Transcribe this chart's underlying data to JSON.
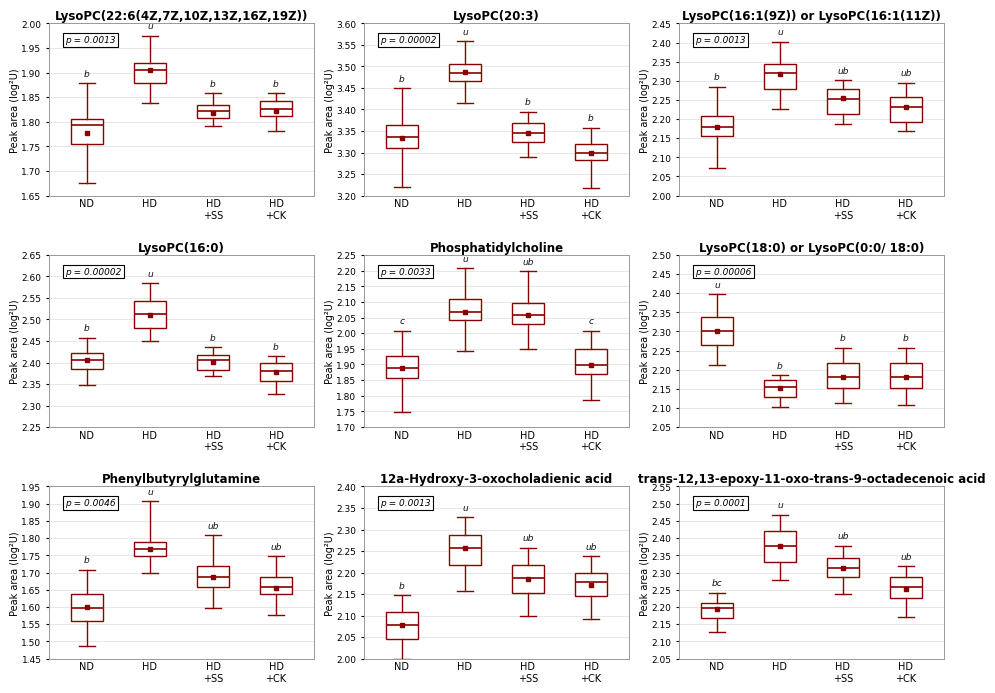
{
  "plots": [
    {
      "title": "LysoPC(22:6(4Z,7Z,10Z,13Z,16Z,19Z))",
      "pvalue": "p = 0.0013",
      "ylabel": "Peak area (log²U)",
      "ylim": [
        1.65,
        2.0
      ],
      "ytick_step": 0.05,
      "groups": [
        "ND",
        "HD",
        "HD\n+SS",
        "HD\n+CK"
      ],
      "sig_labels": [
        "b",
        "u",
        "b",
        "b"
      ],
      "boxes": [
        {
          "q1": 1.755,
          "median": 1.793,
          "q3": 1.805,
          "mean": 1.778,
          "whislo": 1.675,
          "whishi": 1.878
        },
        {
          "q1": 1.878,
          "median": 1.905,
          "q3": 1.92,
          "mean": 1.905,
          "whislo": 1.838,
          "whishi": 1.975
        },
        {
          "q1": 1.808,
          "median": 1.821,
          "q3": 1.835,
          "mean": 1.818,
          "whislo": 1.792,
          "whishi": 1.858
        },
        {
          "q1": 1.812,
          "median": 1.826,
          "q3": 1.843,
          "mean": 1.822,
          "whislo": 1.782,
          "whishi": 1.858
        }
      ]
    },
    {
      "title": "LysoPC(20:3)",
      "pvalue": "p = 0.00002",
      "ylabel": "Peak area (log²U)",
      "ylim": [
        3.2,
        3.6
      ],
      "ytick_step": 0.05,
      "groups": [
        "ND",
        "HD",
        "HD\n+SS",
        "HD\n+CK"
      ],
      "sig_labels": [
        "b",
        "u",
        "b",
        "b"
      ],
      "boxes": [
        {
          "q1": 3.31,
          "median": 3.335,
          "q3": 3.365,
          "mean": 3.334,
          "whislo": 3.22,
          "whishi": 3.45
        },
        {
          "q1": 3.465,
          "median": 3.485,
          "q3": 3.505,
          "mean": 3.487,
          "whislo": 3.415,
          "whishi": 3.558
        },
        {
          "q1": 3.325,
          "median": 3.345,
          "q3": 3.368,
          "mean": 3.345,
          "whislo": 3.29,
          "whishi": 3.395
        },
        {
          "q1": 3.282,
          "median": 3.298,
          "q3": 3.32,
          "mean": 3.3,
          "whislo": 3.218,
          "whishi": 3.358
        }
      ]
    },
    {
      "title": "LysoPC(16:1(9Z)) or LysoPC(16:1(11Z))",
      "pvalue": "p = 0.0013",
      "ylabel": "Peak area (log²U)",
      "ylim": [
        2.0,
        2.45
      ],
      "ytick_step": 0.05,
      "groups": [
        "ND",
        "HD",
        "HD\n+SS",
        "HD\n+CK"
      ],
      "sig_labels": [
        "b",
        "u",
        "ub",
        "ub"
      ],
      "boxes": [
        {
          "q1": 2.155,
          "median": 2.178,
          "q3": 2.208,
          "mean": 2.178,
          "whislo": 2.072,
          "whishi": 2.285
        },
        {
          "q1": 2.278,
          "median": 2.32,
          "q3": 2.345,
          "mean": 2.318,
          "whislo": 2.225,
          "whishi": 2.402
        },
        {
          "q1": 2.212,
          "median": 2.253,
          "q3": 2.278,
          "mean": 2.255,
          "whislo": 2.188,
          "whishi": 2.302
        },
        {
          "q1": 2.192,
          "median": 2.232,
          "q3": 2.258,
          "mean": 2.232,
          "whislo": 2.168,
          "whishi": 2.295
        }
      ]
    },
    {
      "title": "LysoPC(16:0)",
      "pvalue": "p = 0.00002",
      "ylabel": "Peak area (log²U)",
      "ylim": [
        2.25,
        2.65
      ],
      "ytick_step": 0.05,
      "groups": [
        "ND",
        "HD",
        "HD\n+SS",
        "HD\n+CK"
      ],
      "sig_labels": [
        "b",
        "u",
        "b",
        "b"
      ],
      "boxes": [
        {
          "q1": 2.385,
          "median": 2.405,
          "q3": 2.422,
          "mean": 2.405,
          "whislo": 2.348,
          "whishi": 2.458
        },
        {
          "q1": 2.48,
          "median": 2.512,
          "q3": 2.542,
          "mean": 2.51,
          "whislo": 2.45,
          "whishi": 2.585
        },
        {
          "q1": 2.382,
          "median": 2.405,
          "q3": 2.418,
          "mean": 2.402,
          "whislo": 2.368,
          "whishi": 2.435
        },
        {
          "q1": 2.358,
          "median": 2.38,
          "q3": 2.4,
          "mean": 2.378,
          "whislo": 2.328,
          "whishi": 2.415
        }
      ]
    },
    {
      "title": "Phosphatidylcholine",
      "pvalue": "p = 0.0033",
      "ylabel": "Peak area (log²U)",
      "ylim": [
        1.7,
        2.25
      ],
      "ytick_step": 0.05,
      "groups": [
        "ND",
        "HD",
        "HD\n+SS",
        "HD\n+CK"
      ],
      "sig_labels": [
        "c",
        "u",
        "ub",
        "c"
      ],
      "boxes": [
        {
          "q1": 1.858,
          "median": 1.888,
          "q3": 1.928,
          "mean": 1.888,
          "whislo": 1.748,
          "whishi": 2.008
        },
        {
          "q1": 2.042,
          "median": 2.068,
          "q3": 2.108,
          "mean": 2.068,
          "whislo": 1.942,
          "whishi": 2.208
        },
        {
          "q1": 2.028,
          "median": 2.058,
          "q3": 2.098,
          "mean": 2.058,
          "whislo": 1.948,
          "whishi": 2.198
        },
        {
          "q1": 1.868,
          "median": 1.898,
          "q3": 1.948,
          "mean": 1.898,
          "whislo": 1.788,
          "whishi": 2.008
        }
      ]
    },
    {
      "title": "LysoPC(18:0) or LysoPC(0:0/ 18:0)",
      "pvalue": "p = 0.00006",
      "ylabel": "Peak area (log²U)",
      "ylim": [
        2.05,
        2.5
      ],
      "ytick_step": 0.05,
      "groups": [
        "ND",
        "HD",
        "HD\n+SS",
        "HD\n+CK"
      ],
      "sig_labels": [
        "u",
        "b",
        "b",
        "b"
      ],
      "boxes": [
        {
          "q1": 2.265,
          "median": 2.302,
          "q3": 2.338,
          "mean": 2.3,
          "whislo": 2.212,
          "whishi": 2.398
        },
        {
          "q1": 2.128,
          "median": 2.155,
          "q3": 2.172,
          "mean": 2.152,
          "whislo": 2.102,
          "whishi": 2.185
        },
        {
          "q1": 2.152,
          "median": 2.182,
          "q3": 2.218,
          "mean": 2.182,
          "whislo": 2.112,
          "whishi": 2.258
        },
        {
          "q1": 2.152,
          "median": 2.182,
          "q3": 2.218,
          "mean": 2.182,
          "whislo": 2.108,
          "whishi": 2.258
        }
      ]
    },
    {
      "title": "Phenylbutyrylglutamine",
      "pvalue": "p = 0.0046",
      "ylabel": "Peak area (log²U)",
      "ylim": [
        1.45,
        1.95
      ],
      "ytick_step": 0.05,
      "groups": [
        "ND",
        "HD",
        "HD\n+SS",
        "HD\n+CK"
      ],
      "sig_labels": [
        "b",
        "u",
        "ub",
        "ub"
      ],
      "boxes": [
        {
          "q1": 1.558,
          "median": 1.598,
          "q3": 1.638,
          "mean": 1.6,
          "whislo": 1.488,
          "whishi": 1.708
        },
        {
          "q1": 1.748,
          "median": 1.768,
          "q3": 1.788,
          "mean": 1.768,
          "whislo": 1.698,
          "whishi": 1.908
        },
        {
          "q1": 1.658,
          "median": 1.688,
          "q3": 1.718,
          "mean": 1.688,
          "whislo": 1.598,
          "whishi": 1.808
        },
        {
          "q1": 1.638,
          "median": 1.658,
          "q3": 1.688,
          "mean": 1.655,
          "whislo": 1.578,
          "whishi": 1.748
        }
      ]
    },
    {
      "title": "12a-Hydroxy-3-oxocholadienic acid",
      "pvalue": "p = 0.0013",
      "ylabel": "Peak area (log²U)",
      "ylim": [
        2.0,
        2.4
      ],
      "ytick_step": 0.05,
      "groups": [
        "ND",
        "HD",
        "HD\n+SS",
        "HD\n+CK"
      ],
      "sig_labels": [
        "b",
        "u",
        "ub",
        "ub"
      ],
      "boxes": [
        {
          "q1": 2.045,
          "median": 2.078,
          "q3": 2.108,
          "mean": 2.078,
          "whislo": 1.998,
          "whishi": 2.148
        },
        {
          "q1": 2.218,
          "median": 2.258,
          "q3": 2.288,
          "mean": 2.258,
          "whislo": 2.158,
          "whishi": 2.328
        },
        {
          "q1": 2.152,
          "median": 2.188,
          "q3": 2.218,
          "mean": 2.185,
          "whislo": 2.098,
          "whishi": 2.258
        },
        {
          "q1": 2.145,
          "median": 2.178,
          "q3": 2.198,
          "mean": 2.172,
          "whislo": 2.092,
          "whishi": 2.238
        }
      ]
    },
    {
      "title": "trans-12,13-epoxy-11-oxo-trans-9-octadecenoic acid",
      "pvalue": "p = 0.0001",
      "ylabel": "Peak area (log²U)",
      "ylim": [
        2.05,
        2.55
      ],
      "ytick_step": 0.05,
      "groups": [
        "ND",
        "HD",
        "HD\n+SS",
        "HD\n+CK"
      ],
      "sig_labels": [
        "bc",
        "u",
        "ub",
        "ub"
      ],
      "boxes": [
        {
          "q1": 2.168,
          "median": 2.198,
          "q3": 2.212,
          "mean": 2.195,
          "whislo": 2.128,
          "whishi": 2.242
        },
        {
          "q1": 2.332,
          "median": 2.378,
          "q3": 2.422,
          "mean": 2.378,
          "whislo": 2.278,
          "whishi": 2.468
        },
        {
          "q1": 2.288,
          "median": 2.312,
          "q3": 2.342,
          "mean": 2.312,
          "whislo": 2.238,
          "whishi": 2.378
        },
        {
          "q1": 2.225,
          "median": 2.258,
          "q3": 2.288,
          "mean": 2.252,
          "whislo": 2.172,
          "whishi": 2.318
        }
      ]
    }
  ],
  "box_color": "#8B0000",
  "bg_color": "white",
  "title_fontsize": 8.5,
  "label_fontsize": 7,
  "tick_fontsize": 6.5,
  "pval_fontsize": 6.5,
  "sig_fontsize": 6.5
}
